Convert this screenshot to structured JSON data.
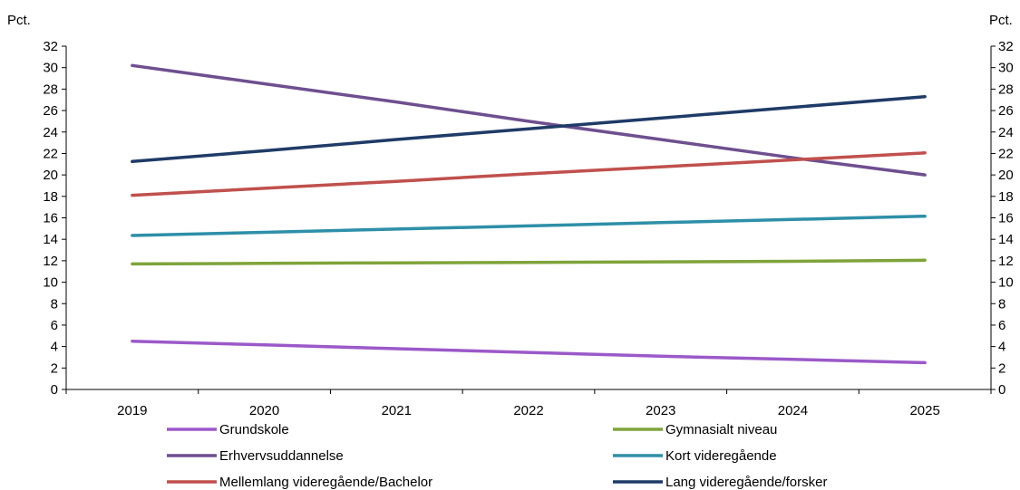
{
  "chart_data": {
    "type": "line",
    "y_unit_left": "Pct.",
    "y_unit_right": "Pct.",
    "x": [
      "2019",
      "2020",
      "2021",
      "2022",
      "2023",
      "2024",
      "2025"
    ],
    "ylim": [
      0,
      32
    ],
    "yticks": [
      0,
      2,
      4,
      6,
      8,
      10,
      12,
      14,
      16,
      18,
      20,
      22,
      24,
      26,
      28,
      30,
      32
    ],
    "grid": false,
    "legend_position": "bottom",
    "series": [
      {
        "name": "Grundskole",
        "color": "#9B59C9",
        "values": [
          4.5,
          4.15,
          3.8,
          3.45,
          3.1,
          2.8,
          2.5
        ]
      },
      {
        "name": "Gymnasialt niveau",
        "color": "#7FA33A",
        "values": [
          11.7,
          11.75,
          11.8,
          11.85,
          11.9,
          11.95,
          12.05
        ]
      },
      {
        "name": "Erhvervsuddannelse",
        "color": "#6E4F8F",
        "values": [
          30.2,
          28.5,
          26.8,
          25.0,
          23.3,
          21.6,
          20.0
        ]
      },
      {
        "name": "Kort videregående",
        "color": "#2E8FA8",
        "values": [
          14.35,
          14.65,
          14.95,
          15.25,
          15.55,
          15.85,
          16.15
        ]
      },
      {
        "name": "Mellemlang videregående/Bachelor",
        "color": "#C0504D",
        "values": [
          18.1,
          18.75,
          19.4,
          20.1,
          20.75,
          21.4,
          22.05
        ]
      },
      {
        "name": "Lang videregående/forsker",
        "color": "#1F3B67",
        "values": [
          21.25,
          22.25,
          23.3,
          24.3,
          25.3,
          26.3,
          27.3
        ]
      }
    ]
  }
}
